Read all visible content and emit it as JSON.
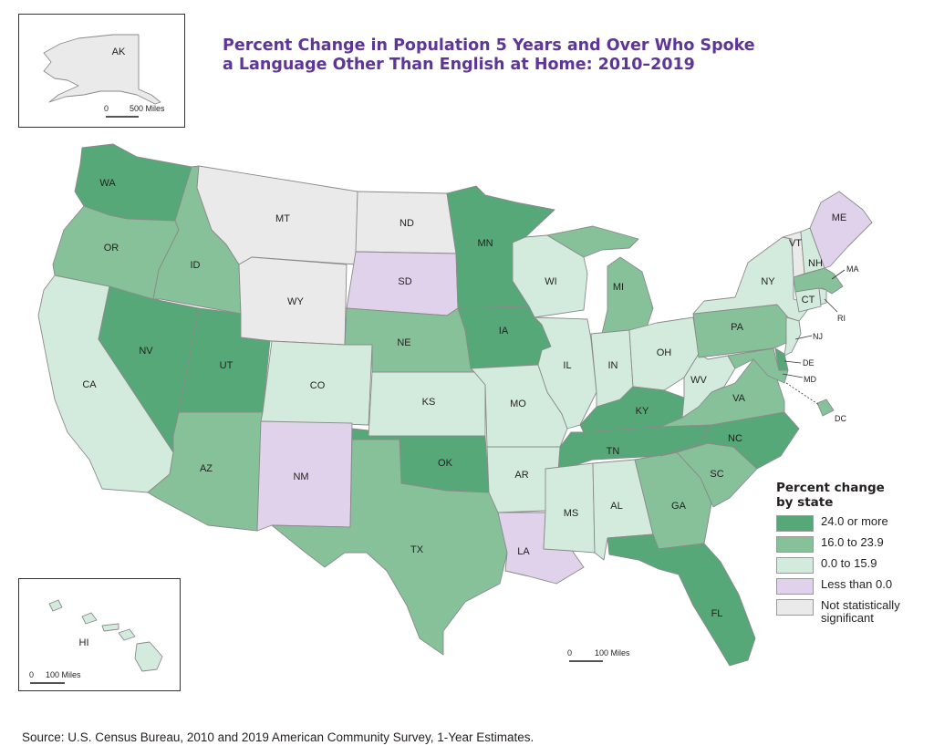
{
  "title_lines": [
    "Percent Change in Population 5 Years and Over Who Spoke",
    "a Language Other Than English at Home: 2010–2019"
  ],
  "colors": {
    "c1": "#57a878",
    "c2": "#86c199",
    "c3": "#d3ebdc",
    "c4": "#e0d2ea",
    "c5": "#eaeaea"
  },
  "legend": {
    "title_lines": [
      "Percent change",
      "by state"
    ],
    "items": [
      {
        "label_lines": [
          "24.0 or more"
        ],
        "category": "c1"
      },
      {
        "label_lines": [
          "16.0 to 23.9"
        ],
        "category": "c2"
      },
      {
        "label_lines": [
          "0.0 to 15.9"
        ],
        "category": "c3"
      },
      {
        "label_lines": [
          "Less than 0.0"
        ],
        "category": "c4"
      },
      {
        "label_lines": [
          "Not statistically",
          "significant"
        ],
        "category": "c5"
      }
    ]
  },
  "states": {
    "WA": "c1",
    "OR": "c2",
    "CA": "c3",
    "ID": "c2",
    "NV": "c1",
    "UT": "c1",
    "AZ": "c2",
    "MT": "c5",
    "WY": "c5",
    "CO": "c3",
    "NM": "c4",
    "ND": "c5",
    "SD": "c4",
    "NE": "c2",
    "KS": "c3",
    "OK": "c1",
    "TX": "c2",
    "MN": "c1",
    "IA": "c1",
    "MO": "c3",
    "AR": "c3",
    "LA": "c4",
    "WI": "c3",
    "IL": "c3",
    "MI": "c2",
    "IN": "c3",
    "OH": "c3",
    "KY": "c1",
    "TN": "c1",
    "MS": "c3",
    "AL": "c3",
    "GA": "c2",
    "FL": "c1",
    "SC": "c2",
    "NC": "c1",
    "VA": "c2",
    "WV": "c3",
    "PA": "c2",
    "NY": "c3",
    "VT": "c5",
    "NH": "c3",
    "ME": "c4",
    "MA": "c2",
    "CT": "c3",
    "RI": "c3",
    "NJ": "c3",
    "DE": "c1",
    "MD": "c2",
    "DC": "c2",
    "AK": "c5",
    "HI": "c3"
  },
  "state_labels": {
    "WA": "WA",
    "OR": "OR",
    "CA": "CA",
    "ID": "ID",
    "NV": "NV",
    "UT": "UT",
    "AZ": "AZ",
    "MT": "MT",
    "WY": "WY",
    "CO": "CO",
    "NM": "NM",
    "ND": "ND",
    "SD": "SD",
    "NE": "NE",
    "KS": "KS",
    "OK": "OK",
    "TX": "TX",
    "MN": "MN",
    "IA": "IA",
    "MO": "MO",
    "AR": "AR",
    "LA": "LA",
    "WI": "WI",
    "IL": "IL",
    "MI": "MI",
    "IN": "IN",
    "OH": "OH",
    "KY": "KY",
    "TN": "TN",
    "MS": "MS",
    "AL": "AL",
    "GA": "GA",
    "FL": "FL",
    "SC": "SC",
    "NC": "NC",
    "VA": "VA",
    "WV": "WV",
    "PA": "PA",
    "NY": "NY",
    "VT": "VT",
    "NH": "NH",
    "ME": "ME",
    "MA": "MA",
    "CT": "CT",
    "RI": "RI",
    "NJ": "NJ",
    "DE": "DE",
    "MD": "MD",
    "DC": "DC",
    "AK": "AK",
    "HI": "HI"
  },
  "scale_bars": {
    "alaska": {
      "zero": "0",
      "dist": "500 Miles"
    },
    "hawaii": {
      "zero": "0",
      "dist": "100 Miles"
    },
    "main": {
      "zero": "0",
      "dist": "100 Miles"
    }
  },
  "source": "Source: U.S. Census Bureau, 2010 and 2019 American Community Survey, 1-Year Estimates."
}
